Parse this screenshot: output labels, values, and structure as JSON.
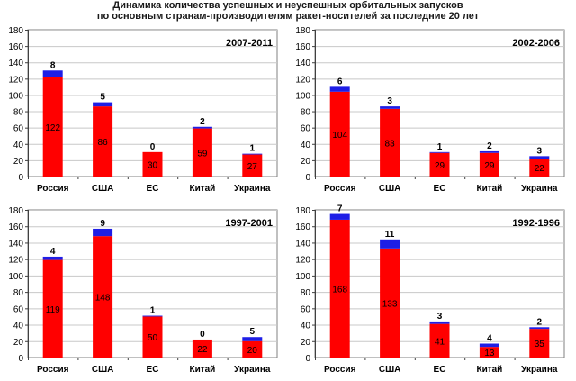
{
  "title_line1": "Динамика количества успешных и неуспешных орбитальных запусков",
  "title_line2": "по основным странам-производителям ракет-носителей за последние 20 лет",
  "colors": {
    "success": "#ff0000",
    "failure": "#1e1ee6",
    "grid": "#c8c8c8",
    "axis": "#404040"
  },
  "chart_data": [
    {
      "type": "bar",
      "stacked": true,
      "title": "2007-2011",
      "categories": [
        "Россия",
        "США",
        "ЕС",
        "Китай",
        "Украина"
      ],
      "series": [
        {
          "values": [
            122,
            86,
            30,
            59,
            27
          ]
        },
        {
          "values": [
            8,
            5,
            0,
            2,
            1
          ]
        }
      ],
      "ylim": [
        0,
        180
      ],
      "yticks": [
        0,
        20,
        40,
        60,
        80,
        100,
        120,
        140,
        160,
        180
      ],
      "grid": true
    },
    {
      "type": "bar",
      "stacked": true,
      "title": "2002-2006",
      "categories": [
        "Россия",
        "США",
        "ЕС",
        "Китай",
        "Украина"
      ],
      "series": [
        {
          "values": [
            104,
            83,
            29,
            29,
            22
          ]
        },
        {
          "values": [
            6,
            3,
            1,
            2,
            3
          ]
        }
      ],
      "ylim": [
        0,
        180
      ],
      "yticks": [
        0,
        20,
        40,
        60,
        80,
        100,
        120,
        140,
        160,
        180
      ],
      "grid": true
    },
    {
      "type": "bar",
      "stacked": true,
      "title": "1997-2001",
      "categories": [
        "Россия",
        "США",
        "ЕС",
        "Китай",
        "Украина"
      ],
      "series": [
        {
          "values": [
            119,
            148,
            50,
            22,
            20
          ]
        },
        {
          "values": [
            4,
            9,
            1,
            0,
            5
          ]
        }
      ],
      "ylim": [
        0,
        180
      ],
      "yticks": [
        0,
        20,
        40,
        60,
        80,
        100,
        120,
        140,
        160,
        180
      ],
      "grid": true
    },
    {
      "type": "bar",
      "stacked": true,
      "title": "1992-1996",
      "categories": [
        "Россия",
        "США",
        "ЕС",
        "Китай",
        "Украина"
      ],
      "series": [
        {
          "values": [
            168,
            133,
            41,
            13,
            35
          ]
        },
        {
          "values": [
            7,
            11,
            3,
            4,
            2
          ]
        }
      ],
      "ylim": [
        0,
        180
      ],
      "yticks": [
        0,
        20,
        40,
        60,
        80,
        100,
        120,
        140,
        160,
        180
      ],
      "grid": true
    }
  ]
}
